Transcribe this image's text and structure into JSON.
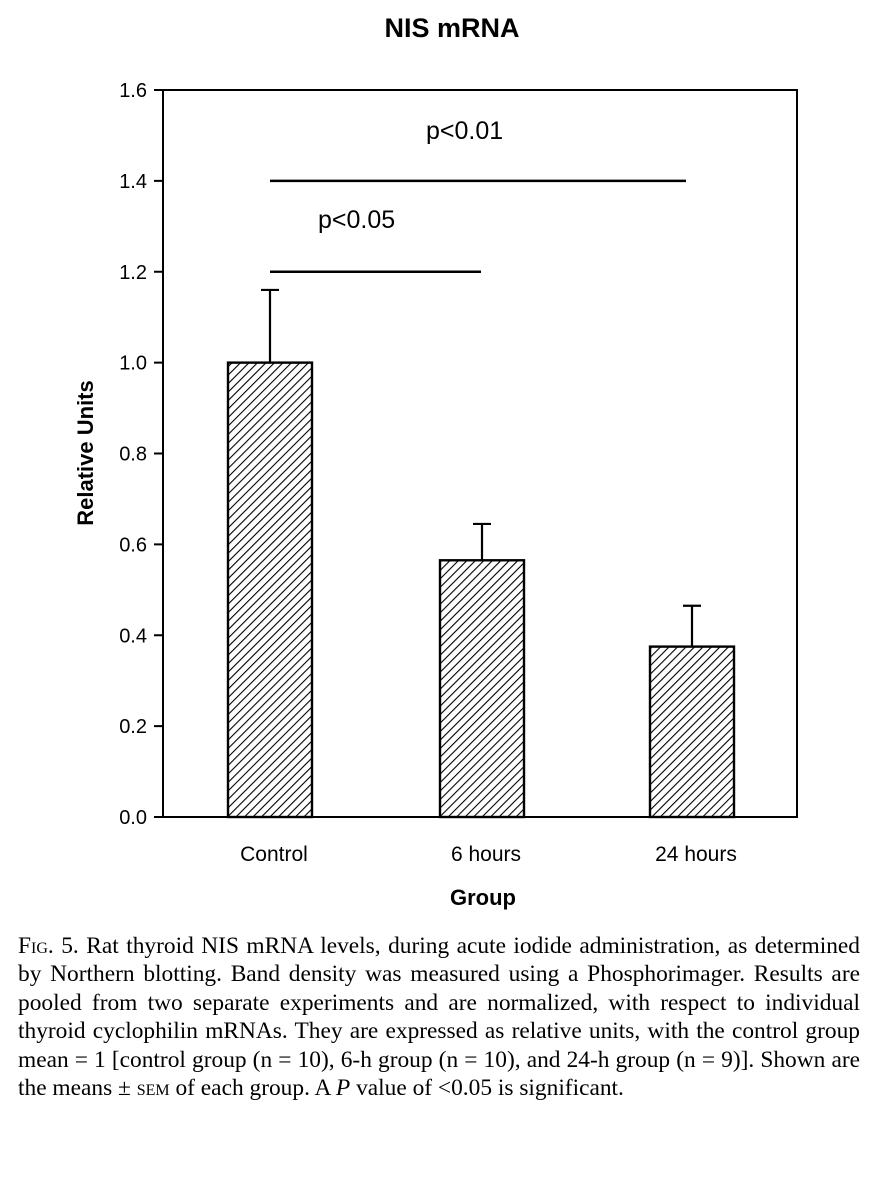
{
  "chart_data": {
    "type": "bar",
    "title": "NIS mRNA",
    "xlabel": "Group",
    "ylabel": "Relative Units",
    "categories": [
      "Control",
      "6 hours",
      "24 hours"
    ],
    "values": [
      1.0,
      0.565,
      0.375
    ],
    "error_upper": [
      0.16,
      0.08,
      0.09
    ],
    "ylim": [
      0,
      1.6
    ],
    "yticks": [
      0.0,
      0.2,
      0.4,
      0.6,
      0.8,
      1.0,
      1.2,
      1.4,
      1.6
    ],
    "ytick_labels": [
      "0.0",
      "0.2",
      "0.4",
      "0.6",
      "0.8",
      "1.0",
      "1.2",
      "1.4",
      "1.6"
    ],
    "bar_fill": "diagonal-hatch",
    "grid": false,
    "significance": [
      {
        "label": "p<0.05",
        "from": 0,
        "to": 1,
        "y": 1.2
      },
      {
        "label": "p<0.01",
        "from": 0,
        "to": 2,
        "y": 1.4
      }
    ]
  },
  "caption": {
    "fig_label": "Fig.",
    "fig_number": "5.",
    "body_1": "Rat thyroid NIS mRNA levels, during acute iodide administration, as determined by Northern blotting. Band density was measured using a Phosphorimager. Results are pooled from two separate experiments and are normalized, with respect to individual thyroid cyclophilin mRNAs. They are expressed as relative units, with the control group mean = 1 [control group (n = 10), 6-h group (n = 10), and 24-h group (n = 9)]. Shown are the means ± ",
    "sem": "sem",
    "body_2": " of each group. A ",
    "p_italic": "P",
    "body_3": " value of <0.05 is significant."
  }
}
